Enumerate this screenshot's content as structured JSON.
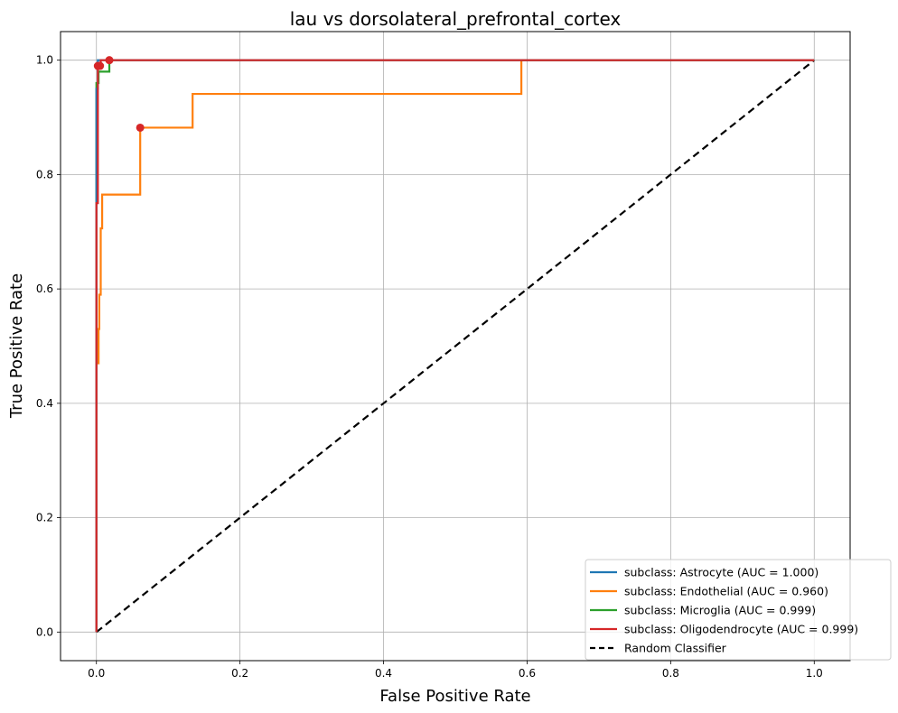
{
  "chart_data": {
    "type": "line",
    "title": "lau vs dorsolateral_prefrontal_cortex",
    "xlabel": "False Positive Rate",
    "ylabel": "True Positive Rate",
    "xlim": [
      -0.05,
      1.05
    ],
    "ylim": [
      -0.05,
      1.05
    ],
    "x_ticks": [
      0.0,
      0.2,
      0.4,
      0.6,
      0.8,
      1.0
    ],
    "x_tick_labels": [
      "0.0",
      "0.2",
      "0.4",
      "0.6",
      "0.8",
      "1.0"
    ],
    "y_ticks": [
      0.0,
      0.2,
      0.4,
      0.6,
      0.8,
      1.0
    ],
    "y_tick_labels": [
      "0.0",
      "0.2",
      "0.4",
      "0.6",
      "0.8",
      "1.0"
    ],
    "grid": true,
    "legend_position": "bottom-right",
    "series": [
      {
        "name": "subclass: Astrocyte (AUC = 1.000)",
        "color": "#1f77b4",
        "style": "solid",
        "x": [
          0.0,
          0.0,
          0.002,
          0.002,
          1.0
        ],
        "y": [
          0.0,
          0.95,
          0.95,
          1.0,
          1.0
        ],
        "marker": {
          "x": 0.002,
          "y": 0.99,
          "color": "#d62728"
        }
      },
      {
        "name": "subclass: Endothelial (AUC = 0.960)",
        "color": "#ff7f0e",
        "style": "solid",
        "x": [
          0.0,
          0.0,
          0.003,
          0.003,
          0.004,
          0.004,
          0.006,
          0.006,
          0.008,
          0.008,
          0.061,
          0.061,
          0.134,
          0.134,
          0.592,
          0.592,
          1.0
        ],
        "y": [
          0.0,
          0.47,
          0.47,
          0.53,
          0.53,
          0.59,
          0.59,
          0.706,
          0.706,
          0.765,
          0.765,
          0.882,
          0.882,
          0.941,
          0.941,
          1.0,
          1.0
        ],
        "marker": {
          "x": 0.061,
          "y": 0.882,
          "color": "#d62728"
        }
      },
      {
        "name": "subclass: Microglia (AUC = 0.999)",
        "color": "#2ca02c",
        "style": "solid",
        "x": [
          0.0,
          0.0,
          0.003,
          0.003,
          0.008,
          0.008,
          0.018,
          0.018,
          1.0
        ],
        "y": [
          0.0,
          0.96,
          0.96,
          0.98,
          0.98,
          0.98,
          0.98,
          1.0,
          1.0
        ],
        "marker": {
          "x": 0.005,
          "y": 0.99,
          "color": "#d62728"
        }
      },
      {
        "name": "subclass: Oligodendrocyte (AUC = 0.999)",
        "color": "#d62728",
        "style": "solid",
        "x": [
          0.0,
          0.0,
          0.002,
          0.002,
          0.006,
          0.006,
          1.0
        ],
        "y": [
          0.0,
          0.75,
          0.75,
          0.99,
          0.99,
          1.0,
          1.0
        ],
        "marker": {
          "x": 0.018,
          "y": 1.0,
          "color": "#d62728"
        }
      },
      {
        "name": "Random Classifier",
        "color": "#000000",
        "style": "dashed",
        "x": [
          0.0,
          1.0
        ],
        "y": [
          0.0,
          1.0
        ]
      }
    ]
  }
}
